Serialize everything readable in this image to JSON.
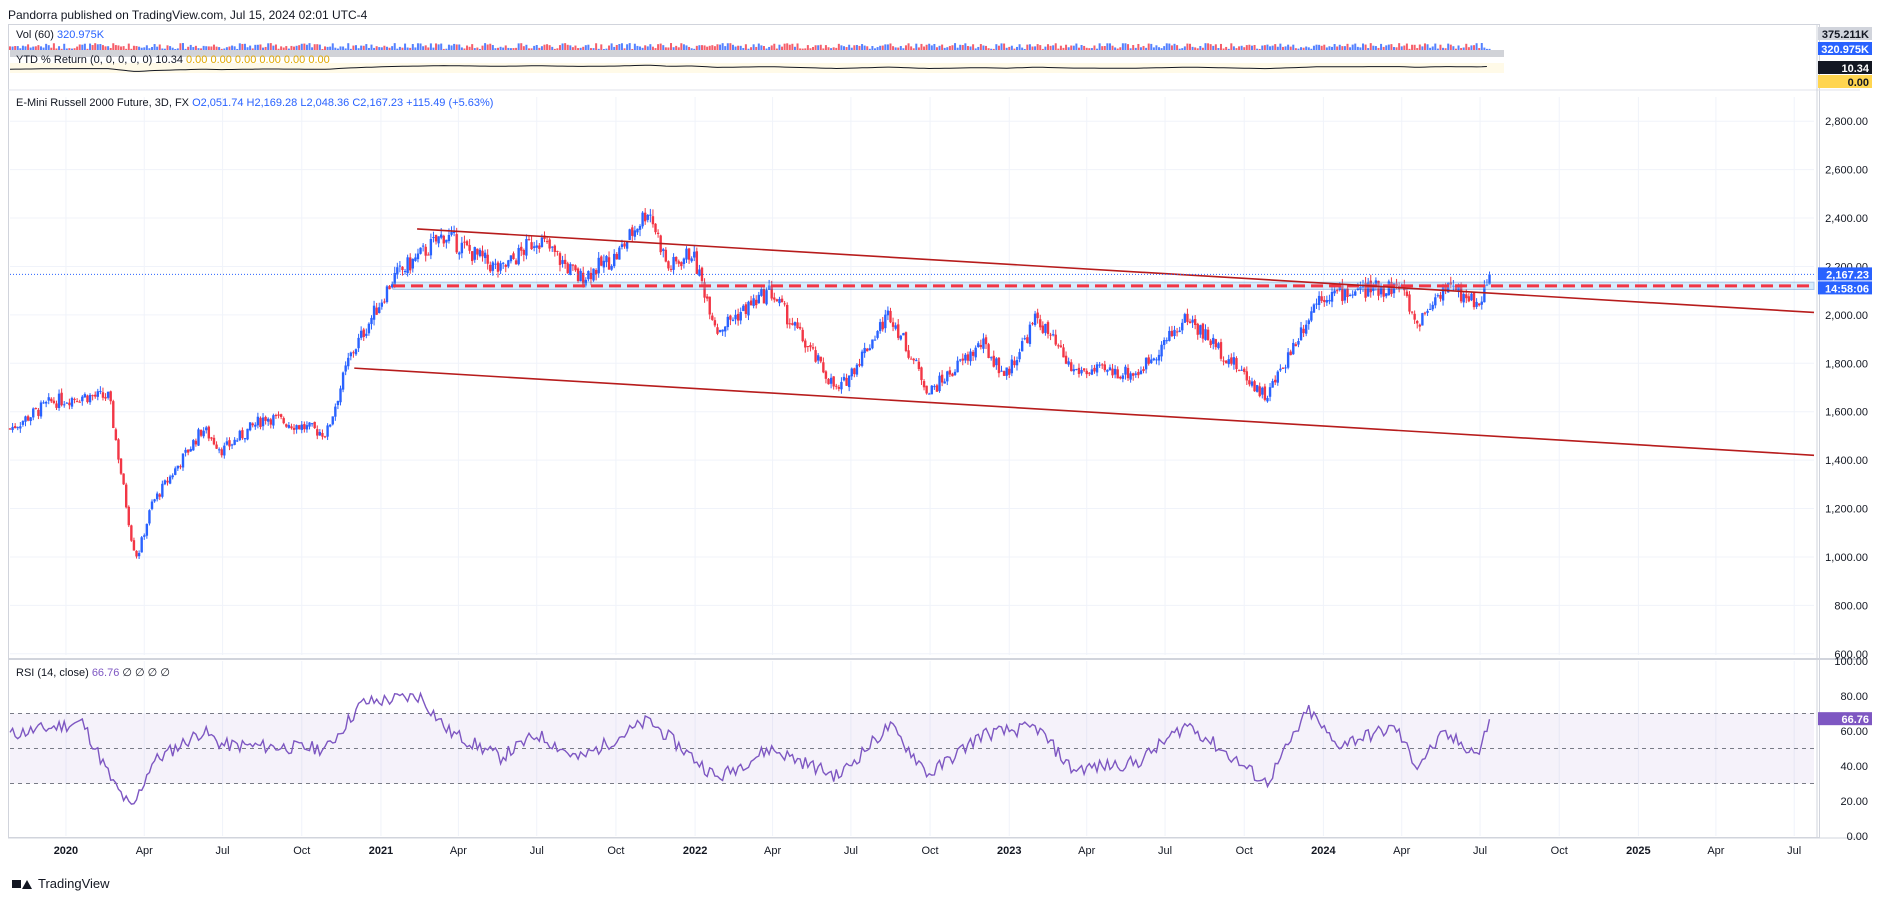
{
  "header": {
    "published_by": "Pandorra published on TradingView.com, Jul 15, 2024 02:01 UTC-4"
  },
  "legends": {
    "volume": {
      "label": "Vol (60)",
      "value": "320.975K"
    },
    "ytd": {
      "label": "YTD % Return (0, 0, 0, 0, 0)",
      "value": "10.34",
      "rest": "0.00  0.00  0.00  0.00  0.00  0.00"
    },
    "main": {
      "label": "E-Mini Russell 2000 Future, 3D, FX",
      "o": "O2,051.74",
      "h": "H2,169.28",
      "l": "L2,048.36",
      "c": "C2,167.23",
      "change": "+115.49 (+5.63%)"
    },
    "rsi": {
      "label": "RSI (14, close)",
      "value": "66.76",
      "rest": "∅  ∅  ∅  ∅"
    }
  },
  "price_badges": {
    "vol_top": "375.211K",
    "vol_value": "320.975K",
    "ytd_value": "10.34",
    "ytd_zero": "0.00",
    "last_price": "2,167.23",
    "countdown": "14:58:06",
    "rsi_value": "66.76"
  },
  "footer": {
    "brand": "TradingView"
  },
  "colors": {
    "up": "#2962ff",
    "down": "#f23645",
    "trendline": "#b71c1c",
    "rsi": "#7e57c2",
    "ytd": "#131722",
    "grid": "#f0f3fa"
  },
  "chart_data": [
    {
      "type": "candlestick",
      "title": "E-Mini Russell 2000 Future, 3D, FX",
      "x_tick_labels": [
        "2020",
        "Apr",
        "Jul",
        "Oct",
        "2021",
        "Apr",
        "Jul",
        "Oct",
        "2022",
        "Apr",
        "Jul",
        "Oct",
        "2023",
        "Apr",
        "Jul",
        "Oct",
        "2024",
        "Apr",
        "Jul",
        "Oct",
        "2025",
        "Apr",
        "Jul"
      ],
      "x_tick_dates": [
        "2020-01-01",
        "2020-04-01",
        "2020-07-01",
        "2020-10-01",
        "2021-01-01",
        "2021-04-01",
        "2021-07-01",
        "2021-10-01",
        "2022-01-01",
        "2022-04-01",
        "2022-07-01",
        "2022-10-01",
        "2023-01-01",
        "2023-04-01",
        "2023-07-01",
        "2023-10-01",
        "2024-01-01",
        "2024-04-01",
        "2024-07-01",
        "2024-10-01",
        "2025-01-01",
        "2025-04-01",
        "2025-07-01"
      ],
      "x_range": [
        "2019-10-28",
        "2025-07-24"
      ],
      "y_tick_labels": [
        "600.00",
        "800.00",
        "1,000.00",
        "1,200.00",
        "1,400.00",
        "1,600.00",
        "1,800.00",
        "2,000.00",
        "2,200.00",
        "2,400.00",
        "2,600.00",
        "2,800.00"
      ],
      "ylim": [
        595,
        2900
      ],
      "last_price": 2167.23,
      "close_anchors": [
        {
          "date": "2019-10-28",
          "close": 1530
        },
        {
          "date": "2019-12-15",
          "close": 1640
        },
        {
          "date": "2020-01-20",
          "close": 1665
        },
        {
          "date": "2020-02-20",
          "close": 1660
        },
        {
          "date": "2020-03-18",
          "close": 1060
        },
        {
          "date": "2020-03-24",
          "close": 1000
        },
        {
          "date": "2020-04-10",
          "close": 1220
        },
        {
          "date": "2020-06-08",
          "close": 1530
        },
        {
          "date": "2020-07-01",
          "close": 1440
        },
        {
          "date": "2020-08-20",
          "close": 1580
        },
        {
          "date": "2020-10-30",
          "close": 1510
        },
        {
          "date": "2020-11-25",
          "close": 1820
        },
        {
          "date": "2021-01-15",
          "close": 2150
        },
        {
          "date": "2021-03-15",
          "close": 2330
        },
        {
          "date": "2021-05-20",
          "close": 2180
        },
        {
          "date": "2021-07-02",
          "close": 2320
        },
        {
          "date": "2021-08-19",
          "close": 2150
        },
        {
          "date": "2021-10-01",
          "close": 2240
        },
        {
          "date": "2021-11-08",
          "close": 2440
        },
        {
          "date": "2021-12-01",
          "close": 2190
        },
        {
          "date": "2021-12-28",
          "close": 2260
        },
        {
          "date": "2022-01-27",
          "close": 1940
        },
        {
          "date": "2022-03-29",
          "close": 2100
        },
        {
          "date": "2022-06-16",
          "close": 1680
        },
        {
          "date": "2022-08-15",
          "close": 2010
        },
        {
          "date": "2022-09-30",
          "close": 1680
        },
        {
          "date": "2022-11-30",
          "close": 1880
        },
        {
          "date": "2022-12-28",
          "close": 1750
        },
        {
          "date": "2023-02-02",
          "close": 1990
        },
        {
          "date": "2023-03-15",
          "close": 1770
        },
        {
          "date": "2023-05-30",
          "close": 1760
        },
        {
          "date": "2023-07-27",
          "close": 1990
        },
        {
          "date": "2023-10-27",
          "close": 1660
        },
        {
          "date": "2023-12-27",
          "close": 2080
        },
        {
          "date": "2024-03-31",
          "close": 2120
        },
        {
          "date": "2024-04-18",
          "close": 1960
        },
        {
          "date": "2024-05-20",
          "close": 2120
        },
        {
          "date": "2024-06-30",
          "close": 2050
        },
        {
          "date": "2024-07-12",
          "close": 2167.23
        }
      ],
      "horizontal_zone": {
        "top": 2135,
        "bottom": 2105,
        "start": "2021-01-15",
        "end": "2025-07-24"
      },
      "trendlines": [
        {
          "start_date": "2021-02-12",
          "start_value": 2355,
          "end_date": "2025-07-24",
          "end_value": 2010
        },
        {
          "start_date": "2020-12-01",
          "start_value": 1780,
          "end_date": "2025-07-24",
          "end_value": 1420
        }
      ]
    },
    {
      "type": "line",
      "title": "RSI (14, close)",
      "y_tick_labels": [
        "0.00",
        "20.00",
        "40.00",
        "60.00",
        "80.00",
        "100.00"
      ],
      "ylim": [
        0,
        100
      ],
      "bands": [
        30,
        50,
        70
      ],
      "last_value": 66.76,
      "rsi_anchors": [
        {
          "date": "2019-10-28",
          "value": 58
        },
        {
          "date": "2020-01-20",
          "value": 65
        },
        {
          "date": "2020-02-25",
          "value": 30
        },
        {
          "date": "2020-03-18",
          "value": 15
        },
        {
          "date": "2020-04-10",
          "value": 42
        },
        {
          "date": "2020-06-08",
          "value": 60
        },
        {
          "date": "2020-07-01",
          "value": 52
        },
        {
          "date": "2020-10-30",
          "value": 50
        },
        {
          "date": "2020-12-10",
          "value": 76
        },
        {
          "date": "2021-02-15",
          "value": 80
        },
        {
          "date": "2021-03-20",
          "value": 60
        },
        {
          "date": "2021-05-20",
          "value": 45
        },
        {
          "date": "2021-07-02",
          "value": 58
        },
        {
          "date": "2021-08-19",
          "value": 44
        },
        {
          "date": "2021-11-08",
          "value": 66
        },
        {
          "date": "2022-01-27",
          "value": 33
        },
        {
          "date": "2022-03-29",
          "value": 50
        },
        {
          "date": "2022-06-16",
          "value": 34
        },
        {
          "date": "2022-08-15",
          "value": 63
        },
        {
          "date": "2022-09-30",
          "value": 35
        },
        {
          "date": "2022-11-30",
          "value": 58
        },
        {
          "date": "2023-02-02",
          "value": 62
        },
        {
          "date": "2023-03-15",
          "value": 38
        },
        {
          "date": "2023-05-30",
          "value": 42
        },
        {
          "date": "2023-07-27",
          "value": 64
        },
        {
          "date": "2023-10-27",
          "value": 30
        },
        {
          "date": "2023-12-15",
          "value": 72
        },
        {
          "date": "2024-01-15",
          "value": 52
        },
        {
          "date": "2024-03-25",
          "value": 62
        },
        {
          "date": "2024-04-18",
          "value": 40
        },
        {
          "date": "2024-05-20",
          "value": 58
        },
        {
          "date": "2024-06-30",
          "value": 47
        },
        {
          "date": "2024-07-12",
          "value": 66.76
        }
      ]
    },
    {
      "type": "bar",
      "title": "Vol (60)",
      "last_value_label": "320.975K",
      "max_label": "375.211K"
    },
    {
      "type": "line",
      "title": "YTD % Return (0, 0, 0, 0, 0)",
      "last_value": 10.34
    }
  ]
}
